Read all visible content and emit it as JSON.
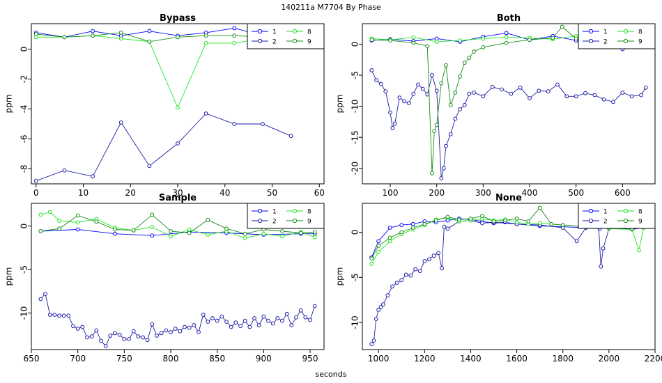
{
  "page": {
    "title": "140211a    M7704   By Phase",
    "xlabel": "seconds"
  },
  "colors": {
    "s1": "#0000ff",
    "s2": "#1a1aa5",
    "s8": "#1ee61e",
    "s9": "#148c14"
  },
  "chart_data": [
    {
      "type": "line",
      "title": "Bypass",
      "ylabel": "ppm",
      "xlabel": "",
      "xlim": [
        -1,
        61
      ],
      "ylim": [
        -9.0,
        1.7
      ],
      "xticks": [
        0,
        10,
        20,
        30,
        40,
        50,
        60
      ],
      "yticks": [
        -8,
        -6,
        -4,
        -2,
        0
      ],
      "legend": {
        "placement": "top-right",
        "entries": [
          "1",
          "2",
          "8",
          "9"
        ]
      },
      "series": [
        {
          "name": "1",
          "x": [
            0,
            6,
            12,
            18,
            24,
            30,
            36,
            42,
            48,
            54
          ],
          "values": [
            1.1,
            0.8,
            1.2,
            0.9,
            1.2,
            0.9,
            1.1,
            1.4,
            0.9,
            1.0
          ]
        },
        {
          "name": "2",
          "x": [
            0,
            6,
            12,
            18,
            24,
            30,
            36,
            42,
            48,
            54
          ],
          "values": [
            -8.8,
            -8.1,
            -8.5,
            -4.9,
            -7.8,
            -6.3,
            -4.3,
            -5.0,
            -5.0,
            -5.8
          ]
        },
        {
          "name": "8",
          "x": [
            0,
            6,
            12,
            18,
            24,
            30,
            36,
            42,
            48,
            54
          ],
          "values": [
            0.8,
            0.8,
            0.9,
            0.7,
            0.5,
            -3.9,
            0.4,
            0.4,
            0.7,
            0.5
          ]
        },
        {
          "name": "9",
          "x": [
            0,
            6,
            12,
            18,
            24,
            30,
            36,
            42,
            48,
            54
          ],
          "values": [
            1.0,
            0.8,
            0.9,
            1.1,
            0.5,
            0.8,
            0.9,
            0.9,
            0.8,
            0.8
          ]
        }
      ]
    },
    {
      "type": "line",
      "title": "Both",
      "ylabel": "ppm",
      "xlabel": "",
      "xlim": [
        40,
        670
      ],
      "ylim": [
        -22.5,
        3.3
      ],
      "xticks": [
        100,
        200,
        300,
        400,
        500,
        600
      ],
      "yticks": [
        -20,
        -15,
        -10,
        -5,
        0
      ],
      "legend": {
        "placement": "top-right",
        "entries": [
          "1",
          "2",
          "8",
          "9"
        ]
      },
      "series": [
        {
          "name": "1",
          "x": [
            60,
            100,
            150,
            200,
            250,
            300,
            350,
            400,
            450,
            500,
            550,
            600,
            650
          ],
          "values": [
            0.6,
            0.8,
            0.5,
            0.9,
            0.4,
            1.2,
            1.8,
            0.7,
            1.3,
            0.6,
            1.0,
            -0.8,
            -0.4
          ]
        },
        {
          "name": "2",
          "x": [
            60,
            70,
            80,
            90,
            100,
            105,
            110,
            120,
            130,
            140,
            150,
            160,
            170,
            180,
            190,
            200,
            210,
            215,
            220,
            230,
            240,
            250,
            260,
            270,
            280,
            300,
            320,
            340,
            360,
            380,
            400,
            420,
            440,
            460,
            480,
            500,
            520,
            540,
            560,
            580,
            600,
            620,
            640,
            650
          ],
          "values": [
            -4.2,
            -5.8,
            -6.4,
            -7.6,
            -11.0,
            -13.5,
            -12.8,
            -8.6,
            -9.2,
            -9.5,
            -8.0,
            -6.5,
            -7.2,
            -8.1,
            -5.0,
            -7.5,
            -21.6,
            -20.0,
            -16.4,
            -14.5,
            -12.0,
            -10.5,
            -9.8,
            -8.0,
            -7.8,
            -8.4,
            -6.9,
            -7.3,
            -8.0,
            -7.0,
            -8.7,
            -7.5,
            -7.6,
            -6.5,
            -8.4,
            -8.4,
            -7.9,
            -8.2,
            -8.9,
            -9.3,
            -7.8,
            -8.4,
            -8.2,
            -7.0
          ]
        },
        {
          "name": "8",
          "x": [
            60,
            100,
            150,
            200,
            250,
            300,
            350,
            400,
            450,
            500,
            550,
            600,
            650
          ],
          "values": [
            0.9,
            0.7,
            1.1,
            0.4,
            0.6,
            0.9,
            1.1,
            1.0,
            0.8,
            1.3,
            1.1,
            0.9,
            0.7
          ]
        },
        {
          "name": "9",
          "x": [
            60,
            100,
            150,
            180,
            190,
            195,
            200,
            210,
            220,
            230,
            240,
            250,
            260,
            270,
            280,
            300,
            350,
            400,
            450,
            470,
            500,
            550,
            600,
            650
          ],
          "values": [
            0.7,
            0.6,
            0.2,
            -0.3,
            -20.8,
            -14.0,
            -13.0,
            -6.3,
            -3.4,
            -9.8,
            -7.8,
            -5.2,
            -3.0,
            -2.2,
            -1.2,
            -0.5,
            0.2,
            0.7,
            1.0,
            2.8,
            0.9,
            0.6,
            0.8,
            0.6
          ]
        }
      ]
    },
    {
      "type": "line",
      "title": "Sample",
      "ylabel": "ppm",
      "xlabel": "",
      "xlim": [
        650,
        965
      ],
      "ylim": [
        -14.2,
        2.6
      ],
      "xticks": [
        650,
        700,
        750,
        800,
        850,
        900,
        950
      ],
      "yticks": [
        -10,
        -5,
        0
      ],
      "legend": {
        "placement": "top-right",
        "entries": [
          "1",
          "2",
          "8",
          "9"
        ]
      },
      "series": [
        {
          "name": "1",
          "x": [
            660,
            700,
            740,
            780,
            820,
            860,
            900,
            940,
            955
          ],
          "values": [
            -0.6,
            -0.4,
            -0.9,
            -1.1,
            -0.7,
            -0.8,
            -1.0,
            -0.9,
            -0.9
          ]
        },
        {
          "name": "2",
          "x": [
            660,
            665,
            670,
            675,
            680,
            685,
            690,
            695,
            700,
            705,
            710,
            715,
            720,
            725,
            730,
            735,
            740,
            745,
            750,
            755,
            760,
            765,
            770,
            775,
            780,
            785,
            790,
            795,
            800,
            805,
            810,
            815,
            820,
            825,
            830,
            835,
            840,
            845,
            850,
            855,
            860,
            865,
            870,
            875,
            880,
            885,
            890,
            895,
            900,
            905,
            910,
            915,
            920,
            925,
            930,
            935,
            940,
            945,
            950,
            955
          ],
          "values": [
            -8.4,
            -7.8,
            -10.2,
            -10.2,
            -10.3,
            -10.3,
            -10.3,
            -11.5,
            -11.8,
            -11.6,
            -12.8,
            -12.7,
            -12.0,
            -13.2,
            -13.8,
            -12.6,
            -12.3,
            -12.5,
            -13.0,
            -13.0,
            -12.1,
            -12.7,
            -12.8,
            -13.1,
            -11.3,
            -12.6,
            -12.3,
            -12.0,
            -12.2,
            -11.8,
            -12.1,
            -11.6,
            -11.7,
            -11.4,
            -12.2,
            -10.2,
            -11.0,
            -10.6,
            -10.9,
            -10.4,
            -11.0,
            -11.6,
            -11.1,
            -11.5,
            -10.9,
            -11.6,
            -10.6,
            -11.4,
            -10.4,
            -10.9,
            -11.2,
            -10.6,
            -10.9,
            -10.1,
            -11.4,
            -10.5,
            -9.7,
            -10.5,
            -10.8,
            -9.2
          ]
        },
        {
          "name": "8",
          "x": [
            660,
            670,
            680,
            700,
            720,
            740,
            760,
            780,
            800,
            820,
            840,
            860,
            880,
            900,
            920,
            940,
            955
          ],
          "values": [
            1.3,
            1.6,
            0.6,
            0.4,
            0.8,
            -0.2,
            -0.5,
            -0.1,
            -1.2,
            -0.4,
            -1.0,
            -0.6,
            -1.4,
            -0.9,
            -1.2,
            -0.7,
            -1.3
          ]
        },
        {
          "name": "9",
          "x": [
            660,
            680,
            700,
            720,
            740,
            760,
            780,
            800,
            820,
            840,
            860,
            880,
            900,
            920,
            940,
            955
          ],
          "values": [
            -0.6,
            -0.3,
            1.2,
            0.5,
            -0.4,
            -0.5,
            1.3,
            -0.6,
            -0.8,
            0.7,
            -0.3,
            -0.9,
            -0.4,
            -0.6,
            -0.8,
            -0.7
          ]
        }
      ]
    },
    {
      "type": "line",
      "title": "None",
      "ylabel": "ppm",
      "xlabel": "",
      "xlim": [
        930,
        2200
      ],
      "ylim": [
        -13.0,
        3.2
      ],
      "xticks": [
        1000,
        1200,
        1400,
        1600,
        1800,
        2000,
        2200
      ],
      "yticks": [
        -10,
        -5,
        0
      ],
      "legend": {
        "placement": "top-right",
        "entries": [
          "1",
          "2",
          "8",
          "9"
        ]
      },
      "series": [
        {
          "name": "1",
          "x": [
            970,
            1000,
            1050,
            1100,
            1150,
            1200,
            1250,
            1300,
            1350,
            1400,
            1450,
            1500,
            1550,
            1600,
            1700,
            1800,
            1900,
            1960,
            2000,
            2100,
            2150
          ],
          "values": [
            -2.8,
            -1.0,
            0.5,
            0.8,
            0.9,
            1.2,
            1.1,
            1.3,
            1.5,
            1.4,
            1.2,
            1.0,
            1.1,
            0.9,
            0.7,
            0.6,
            0.5,
            0.4,
            0.5,
            0.3,
            0.5
          ]
        },
        {
          "name": "2",
          "x": [
            970,
            980,
            990,
            1000,
            1010,
            1020,
            1040,
            1060,
            1080,
            1100,
            1120,
            1140,
            1160,
            1180,
            1200,
            1220,
            1240,
            1260,
            1275,
            1285,
            1300,
            1350,
            1400,
            1450,
            1500,
            1600,
            1700,
            1800,
            1860,
            1900,
            1955,
            1965,
            1975,
            2000,
            2100,
            2150
          ],
          "values": [
            -12.4,
            -12.0,
            -9.6,
            -8.6,
            -8.3,
            -8.0,
            -7.0,
            -6.0,
            -5.6,
            -5.3,
            -4.7,
            -4.8,
            -4.1,
            -4.3,
            -3.2,
            -3.0,
            -2.6,
            -2.3,
            -4.0,
            0.6,
            0.4,
            1.2,
            1.3,
            1.0,
            1.1,
            0.9,
            0.8,
            0.5,
            -1.0,
            0.5,
            0.8,
            -3.8,
            -1.8,
            0.4,
            0.5,
            0.6
          ]
        },
        {
          "name": "8",
          "x": [
            970,
            1000,
            1050,
            1100,
            1150,
            1200,
            1250,
            1300,
            1350,
            1400,
            1450,
            1500,
            1550,
            1600,
            1650,
            1700,
            1800,
            1900,
            2000,
            2100,
            2130,
            2150
          ],
          "values": [
            -3.5,
            -2.2,
            -1.0,
            -0.2,
            0.3,
            0.8,
            1.4,
            1.6,
            1.2,
            1.3,
            1.5,
            1.3,
            1.4,
            1.1,
            0.9,
            1.0,
            0.8,
            0.6,
            0.4,
            0.3,
            -2.0,
            0.5
          ]
        },
        {
          "name": "9",
          "x": [
            970,
            1000,
            1050,
            1100,
            1150,
            1200,
            1250,
            1300,
            1350,
            1400,
            1450,
            1500,
            1550,
            1600,
            1650,
            1700,
            1750,
            1800,
            1900,
            2000,
            2100,
            2150
          ],
          "values": [
            -2.9,
            -1.5,
            -0.6,
            0.0,
            0.5,
            0.9,
            1.3,
            1.7,
            1.4,
            1.5,
            1.8,
            1.2,
            1.3,
            1.5,
            1.2,
            2.7,
            0.9,
            0.8,
            0.6,
            0.5,
            0.4,
            0.6
          ]
        }
      ]
    }
  ]
}
